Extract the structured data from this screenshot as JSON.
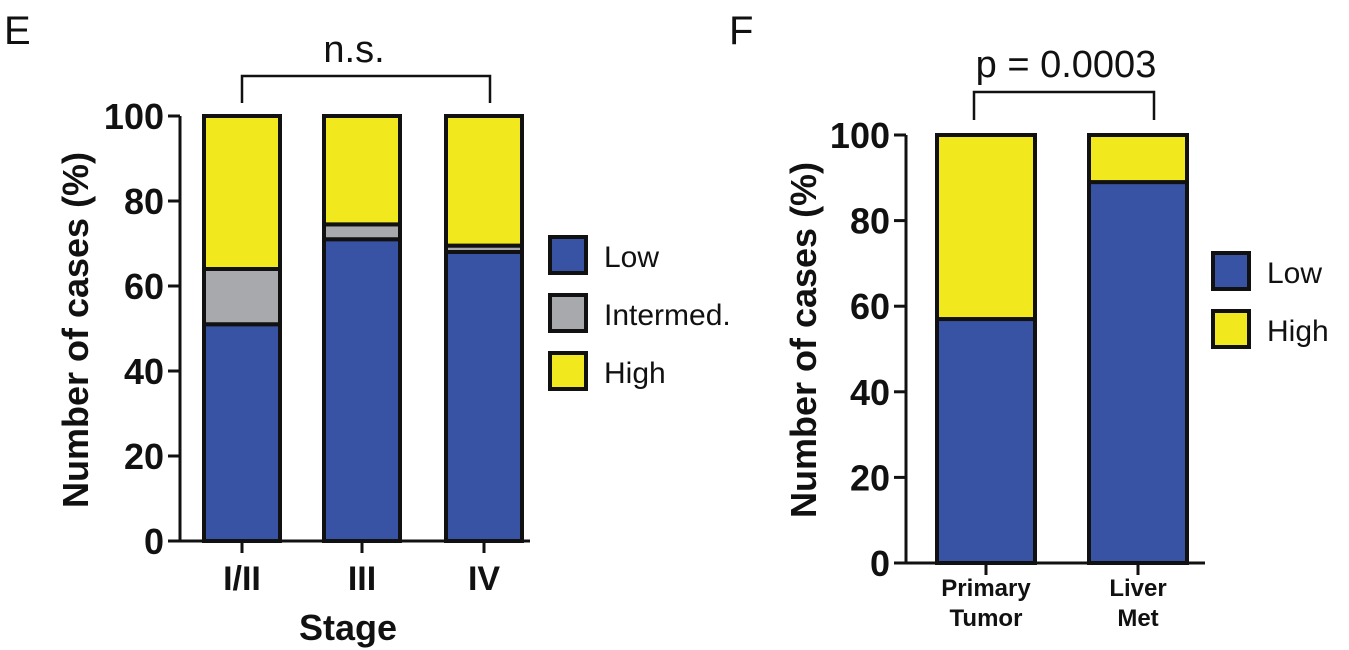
{
  "colors": {
    "Low": "#3953a4",
    "Intermed.": "#a7a9ac",
    "High": "#f1e81d",
    "axis": "#111111"
  },
  "chart_data": [
    {
      "panel": "E",
      "type": "bar",
      "stacked": true,
      "categories": [
        "I/II",
        "III",
        "IV"
      ],
      "series": [
        {
          "name": "Low",
          "values": [
            51,
            71,
            68
          ]
        },
        {
          "name": "Intermed.",
          "values": [
            13,
            3.5,
            1.5
          ]
        },
        {
          "name": "High",
          "values": [
            36,
            25.5,
            30.5
          ]
        }
      ],
      "xlabel": "Stage",
      "ylabel": "Number of cases (%)",
      "ylim": [
        0,
        100
      ],
      "yticks": [
        0,
        20,
        40,
        60,
        80,
        100
      ],
      "annotation": "n.s.",
      "legend": "right"
    },
    {
      "panel": "F",
      "type": "bar",
      "stacked": true,
      "categories": [
        "Primary Tumor",
        "Liver Met"
      ],
      "categories_lines": [
        [
          "Primary",
          "Tumor"
        ],
        [
          "Liver",
          "Met"
        ]
      ],
      "series": [
        {
          "name": "Low",
          "values": [
            57,
            89
          ]
        },
        {
          "name": "High",
          "values": [
            43,
            11
          ]
        }
      ],
      "xlabel": "",
      "ylabel": "Number of cases (%)",
      "ylim": [
        0,
        100
      ],
      "yticks": [
        0,
        20,
        40,
        60,
        80,
        100
      ],
      "annotation": "p = 0.0003",
      "legend": "right"
    }
  ]
}
